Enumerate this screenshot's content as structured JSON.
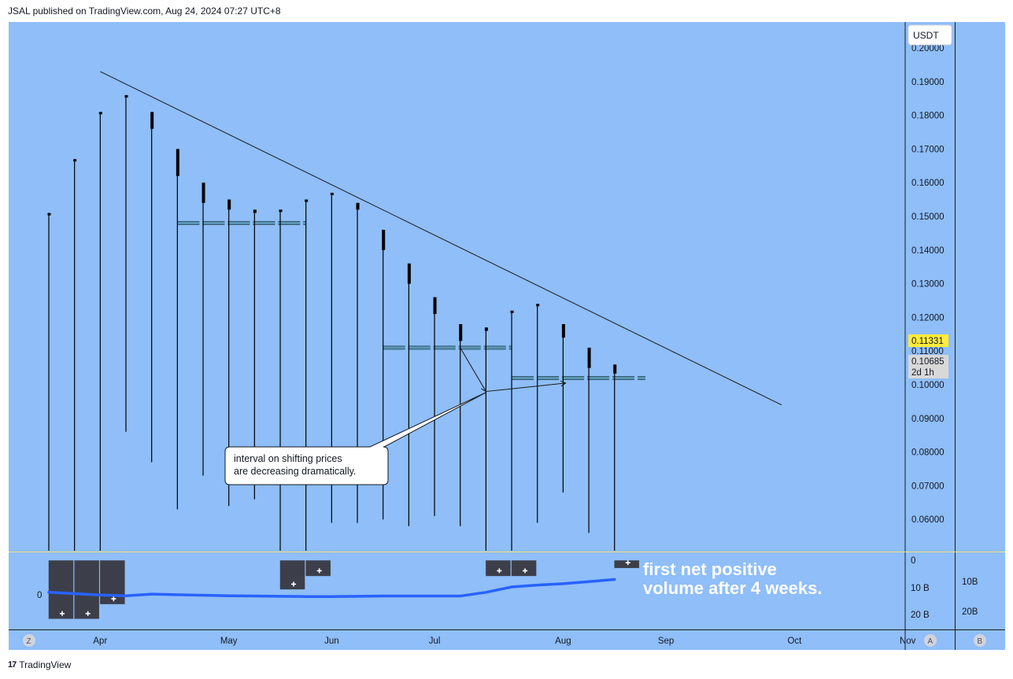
{
  "header": {
    "published": "JSAL published on TradingView.com, Aug 24, 2024 07:27 UTC+8"
  },
  "footer": {
    "brand": "TradingView",
    "logo_glyph": "17"
  },
  "colors": {
    "background": "#8fbef8",
    "candle": "#000000",
    "trendline": "#1b1b1b",
    "level": "#5b96b5",
    "volume_bar": "#3c3f4a",
    "volume_line": "#2962ff",
    "current_price_badge": "#ffeb3b",
    "divider": "#f2e07a"
  },
  "currency_badge": "USDT",
  "price_axis": {
    "ticks": [
      "0.20000",
      "0.19000",
      "0.18000",
      "0.17000",
      "0.16000",
      "0.15000",
      "0.14000",
      "0.13000",
      "0.12000",
      "0.11000",
      "0.10000",
      "0.09000",
      "0.08000",
      "0.07000",
      "0.06000"
    ],
    "current_price": "0.11331",
    "last_price": "0.10685",
    "countdown": "2d 1h"
  },
  "time_axis": {
    "labels": [
      "Apr",
      "May",
      "Jun",
      "Jul",
      "Aug",
      "Sep",
      "Oct",
      "Nov"
    ]
  },
  "volume_pane": {
    "left_label": "0",
    "right_labels": [
      "0",
      "10 B",
      "20 B"
    ],
    "far_right_labels": [
      "10B",
      "20B"
    ],
    "annotation_line1": "first net positive",
    "annotation_line2": "volume after 4 weeks."
  },
  "bottom_buttons": {
    "z": "Z",
    "a": "A",
    "b": "B"
  },
  "callout": {
    "line1": "interval on shifting prices",
    "line2": "are decreasing dramatically."
  },
  "chart_data": {
    "type": "candlestick",
    "title": "",
    "ylim": [
      0.05,
      0.205
    ],
    "price_ticks": [
      0.2,
      0.19,
      0.18,
      0.17,
      0.16,
      0.15,
      0.14,
      0.13,
      0.12,
      0.11,
      0.1,
      0.09,
      0.08,
      0.07,
      0.06
    ],
    "weeks": [
      {
        "high": 0.151,
        "low": 0.05,
        "open": 0.151,
        "close": 0.151
      },
      {
        "high": 0.167,
        "low": 0.05,
        "open": 0.167,
        "close": 0.167
      },
      {
        "high": 0.181,
        "low": 0.05,
        "open": 0.181,
        "close": 0.181
      },
      {
        "high": 0.186,
        "low": 0.086,
        "open": 0.186,
        "close": 0.186
      },
      {
        "high": 0.181,
        "low": 0.077,
        "open": 0.181,
        "close": 0.176
      },
      {
        "high": 0.17,
        "low": 0.063,
        "open": 0.17,
        "close": 0.162
      },
      {
        "high": 0.16,
        "low": 0.073,
        "open": 0.16,
        "close": 0.154
      },
      {
        "high": 0.155,
        "low": 0.064,
        "open": 0.155,
        "close": 0.152
      },
      {
        "high": 0.152,
        "low": 0.066,
        "open": 0.152,
        "close": 0.151
      },
      {
        "high": 0.152,
        "low": 0.05,
        "open": 0.152,
        "close": 0.152
      },
      {
        "high": 0.155,
        "low": 0.05,
        "open": 0.155,
        "close": 0.155
      },
      {
        "high": 0.157,
        "low": 0.059,
        "open": 0.157,
        "close": 0.157
      },
      {
        "high": 0.154,
        "low": 0.059,
        "open": 0.154,
        "close": 0.152
      },
      {
        "high": 0.146,
        "low": 0.06,
        "open": 0.146,
        "close": 0.14
      },
      {
        "high": 0.136,
        "low": 0.058,
        "open": 0.136,
        "close": 0.13
      },
      {
        "high": 0.126,
        "low": 0.061,
        "open": 0.126,
        "close": 0.121
      },
      {
        "high": 0.118,
        "low": 0.058,
        "open": 0.118,
        "close": 0.113
      },
      {
        "high": 0.117,
        "low": 0.05,
        "open": 0.117,
        "close": 0.116
      },
      {
        "high": 0.122,
        "low": 0.05,
        "open": 0.122,
        "close": 0.122
      },
      {
        "high": 0.124,
        "low": 0.059,
        "open": 0.124,
        "close": 0.124
      },
      {
        "high": 0.118,
        "low": 0.068,
        "open": 0.118,
        "close": 0.114
      },
      {
        "high": 0.111,
        "low": 0.056,
        "open": 0.111,
        "close": 0.105
      },
      {
        "high": 0.106,
        "low": 0.05,
        "open": 0.106,
        "close": 0.1033
      }
    ],
    "trendline": {
      "start_week": 2,
      "start_price": 0.193,
      "end_week": 28.5,
      "end_price": 0.094
    },
    "levels": [
      {
        "start_week": 5,
        "end_week": 10,
        "price": 0.148
      },
      {
        "start_week": 13,
        "end_week": 18,
        "price": 0.111
      },
      {
        "start_week": 18,
        "end_week": 23.2,
        "price": 0.102
      }
    ],
    "arrows": [
      {
        "from": [
          16,
          0.111
        ],
        "to": [
          17,
          0.098
        ]
      },
      {
        "from": [
          17,
          0.098
        ],
        "to": [
          20.1,
          0.1005
        ]
      }
    ],
    "volume_ylim": [
      0,
      22
    ],
    "volume_ticks": [
      0,
      10,
      20
    ],
    "net_volume": [
      22,
      22,
      16.5,
      null,
      null,
      null,
      null,
      null,
      null,
      11,
      6,
      null,
      null,
      null,
      null,
      null,
      null,
      6,
      6,
      null,
      null,
      null,
      3
    ],
    "cumulative_line": [
      12,
      12.5,
      13,
      13.3,
      12.7,
      12.9,
      13.1,
      13.3,
      13.4,
      13.5,
      13.6,
      13.6,
      13.5,
      13.4,
      13.4,
      13.4,
      13.4,
      12,
      10,
      9.3,
      8.8,
      8,
      7.2
    ],
    "x_labels": [
      {
        "label": "Apr",
        "week": 2
      },
      {
        "label": "May",
        "week": 7
      },
      {
        "label": "Jun",
        "week": 11
      },
      {
        "label": "Jul",
        "week": 15
      },
      {
        "label": "Aug",
        "week": 20
      },
      {
        "label": "Sep",
        "week": 24
      },
      {
        "label": "Oct",
        "week": 29
      },
      {
        "label": "Nov",
        "week": 33.4
      }
    ]
  }
}
